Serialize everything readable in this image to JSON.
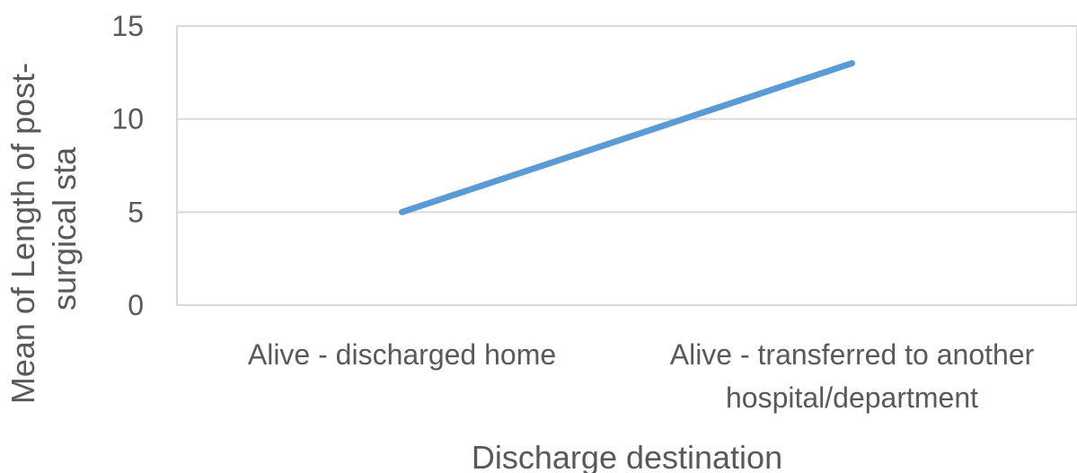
{
  "chart_data": {
    "type": "line",
    "title": "",
    "categories": [
      [
        "Alive - discharged home"
      ],
      [
        "Alive - transferred to another",
        "hospital/department"
      ]
    ],
    "series": [
      {
        "values": [
          5,
          13
        ],
        "color": "#5b9bd5"
      }
    ],
    "xlabel": "Discharge destination",
    "ylabel": [
      "Mean of Length of post-",
      "surgical sta"
    ],
    "ylim": [
      0,
      15
    ],
    "yticks": [
      0,
      5,
      10,
      15
    ],
    "grid": true,
    "gridColor": "#d9d9d9",
    "textColor": "#595959",
    "legend": "none"
  }
}
